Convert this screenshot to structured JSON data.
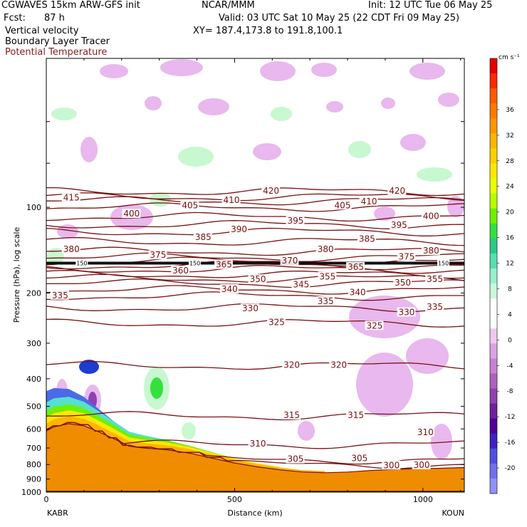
{
  "header": {
    "model": "CGWAVES 15km ARW-GFS init",
    "org": "NCAR/MMM",
    "init": "Init: 12 UTC Tue 06 May 25",
    "fcst_label": "Fcst:",
    "fcst_value": "87 h",
    "valid": "Valid: 03 UTC Sat 10 May 25 (22 CDT Fri 09 May 25)",
    "field1": "Vertical velocity",
    "field2": "Boundary Layer Tracer",
    "field3": "Potential Temperature",
    "xy": "XY= 187.4,173.8 to 191.8,100.1"
  },
  "colors": {
    "theta": "#7a1010",
    "tracer": "#f08c00",
    "field3_text": "#8b1a1a"
  },
  "chart_data": {
    "type": "cross-section",
    "ylabel": "Pressure (hPa), log scale",
    "xlabel": "Distance (km)",
    "yscale": "log",
    "ylim": [
      1000,
      30
    ],
    "xlim": [
      0,
      1110
    ],
    "x_ticks": [
      "0",
      "500",
      "1000"
    ],
    "x_tick_values": [
      0,
      500,
      1000
    ],
    "y_ticks": [
      "100",
      "200",
      "300",
      "400",
      "500",
      "600",
      "700",
      "800",
      "900",
      "1000"
    ],
    "y_tick_values": [
      100,
      200,
      300,
      400,
      500,
      600,
      700,
      800,
      900,
      1000
    ],
    "left_endpoint": "KABR",
    "right_endpoint": "KOUN",
    "colorbar": {
      "unit": "cm s⁻¹",
      "labels": [
        "36",
        "32",
        "28",
        "24",
        "20",
        "16",
        "12",
        "8",
        "4",
        "0",
        "-4",
        "-8",
        "-12",
        "-16",
        "-20"
      ],
      "label_values": [
        36,
        32,
        28,
        24,
        20,
        16,
        12,
        8,
        4,
        0,
        -4,
        -8,
        -12,
        -16,
        -20
      ],
      "colors": [
        "#e60000",
        "#ff2a00",
        "#ff5a00",
        "#ff7a00",
        "#ff9600",
        "#ffb400",
        "#ffd000",
        "#ffe800",
        "#eaff00",
        "#b6ff00",
        "#6ef000",
        "#35e03c",
        "#2ec882",
        "#55e0b0",
        "#98f0c8",
        "#c8f8dc",
        "#ffffff",
        "#ffffff",
        "#f0c8f0",
        "#dca0e6",
        "#c880d2",
        "#b060c0",
        "#9040b0",
        "#7020a0",
        "#500098",
        "#4020c0",
        "#5050e0",
        "#7070f0",
        "#9090ff"
      ]
    },
    "theta_contours": [
      {
        "value": 300,
        "p": 800
      },
      {
        "value": 305,
        "p": 770
      },
      {
        "value": 310,
        "p": 680
      },
      {
        "value": 315,
        "p": 540
      },
      {
        "value": 320,
        "p": 360
      },
      {
        "value": 325,
        "p": 255
      },
      {
        "value": 330,
        "p": 225
      },
      {
        "value": 335,
        "p": 205
      },
      {
        "value": 340,
        "p": 195
      },
      {
        "value": 345,
        "p": 185
      },
      {
        "value": 350,
        "p": 178
      },
      {
        "value": 355,
        "p": 172
      },
      {
        "value": 360,
        "p": 165
      },
      {
        "value": 365,
        "p": 160
      },
      {
        "value": 370,
        "p": 155
      },
      {
        "value": 375,
        "p": 150
      },
      {
        "value": 380,
        "p": 143
      },
      {
        "value": 385,
        "p": 132
      },
      {
        "value": 390,
        "p": 122
      },
      {
        "value": 395,
        "p": 115
      },
      {
        "value": 400,
        "p": 108
      },
      {
        "value": 405,
        "p": 100
      },
      {
        "value": 410,
        "p": 95
      },
      {
        "value": 415,
        "p": 92
      },
      {
        "value": 420,
        "p": 88
      }
    ],
    "theta_labels": [
      {
        "text": "415",
        "x": 45,
        "p": 93
      },
      {
        "text": "420",
        "x": 575,
        "p": 88
      },
      {
        "text": "420",
        "x": 910,
        "p": 88
      },
      {
        "text": "410",
        "x": 470,
        "p": 95
      },
      {
        "text": "410",
        "x": 835,
        "p": 96
      },
      {
        "text": "405",
        "x": 360,
        "p": 99
      },
      {
        "text": "405",
        "x": 765,
        "p": 99
      },
      {
        "text": "400",
        "x": 205,
        "p": 106
      },
      {
        "text": "400",
        "x": 1000,
        "p": 108
      },
      {
        "text": "395",
        "x": 640,
        "p": 112
      },
      {
        "text": "395",
        "x": 915,
        "p": 116
      },
      {
        "text": "390",
        "x": 490,
        "p": 120
      },
      {
        "text": "385",
        "x": 395,
        "p": 128
      },
      {
        "text": "385",
        "x": 830,
        "p": 130
      },
      {
        "text": "380",
        "x": 45,
        "p": 141
      },
      {
        "text": "380",
        "x": 720,
        "p": 141
      },
      {
        "text": "380",
        "x": 1000,
        "p": 143
      },
      {
        "text": "375",
        "x": 275,
        "p": 148
      },
      {
        "text": "375",
        "x": 935,
        "p": 150
      },
      {
        "text": "370",
        "x": 625,
        "p": 155
      },
      {
        "text": "365",
        "x": 450,
        "p": 160
      },
      {
        "text": "365",
        "x": 800,
        "p": 163
      },
      {
        "text": "360",
        "x": 335,
        "p": 168
      },
      {
        "text": "355",
        "x": 725,
        "p": 176
      },
      {
        "text": "355",
        "x": 1010,
        "p": 180
      },
      {
        "text": "350",
        "x": 540,
        "p": 180
      },
      {
        "text": "350",
        "x": 925,
        "p": 185
      },
      {
        "text": "345",
        "x": 655,
        "p": 188
      },
      {
        "text": "340",
        "x": 465,
        "p": 195
      },
      {
        "text": "340",
        "x": 805,
        "p": 200
      },
      {
        "text": "335",
        "x": 15,
        "p": 205
      },
      {
        "text": "335",
        "x": 720,
        "p": 215
      },
      {
        "text": "335",
        "x": 1010,
        "p": 225
      },
      {
        "text": "330",
        "x": 520,
        "p": 228
      },
      {
        "text": "330",
        "x": 935,
        "p": 235
      },
      {
        "text": "325",
        "x": 590,
        "p": 255
      },
      {
        "text": "325",
        "x": 850,
        "p": 262
      },
      {
        "text": "320",
        "x": 630,
        "p": 360
      },
      {
        "text": "320",
        "x": 755,
        "p": 360
      },
      {
        "text": "315",
        "x": 630,
        "p": 540
      },
      {
        "text": "315",
        "x": 800,
        "p": 540
      },
      {
        "text": "310",
        "x": 540,
        "p": 680
      },
      {
        "text": "310",
        "x": 985,
        "p": 620
      },
      {
        "text": "305",
        "x": 640,
        "p": 770
      },
      {
        "text": "305",
        "x": 810,
        "p": 765
      },
      {
        "text": "300",
        "x": 895,
        "p": 810
      },
      {
        "text": "300",
        "x": 975,
        "p": 808
      }
    ],
    "tracer_labels": [
      {
        "text": "150",
        "x": 80,
        "p": 157
      },
      {
        "text": "150",
        "x": 380,
        "p": 157
      },
      {
        "text": "150",
        "x": 1040,
        "p": 157
      }
    ],
    "terrain": [
      {
        "x": 0,
        "p": 610
      },
      {
        "x": 20,
        "p": 590
      },
      {
        "x": 60,
        "p": 575
      },
      {
        "x": 100,
        "p": 585
      },
      {
        "x": 140,
        "p": 615
      },
      {
        "x": 180,
        "p": 650
      },
      {
        "x": 220,
        "p": 690
      },
      {
        "x": 260,
        "p": 700
      },
      {
        "x": 320,
        "p": 710
      },
      {
        "x": 380,
        "p": 730
      },
      {
        "x": 440,
        "p": 760
      },
      {
        "x": 500,
        "p": 790
      },
      {
        "x": 560,
        "p": 815
      },
      {
        "x": 620,
        "p": 835
      },
      {
        "x": 680,
        "p": 850
      },
      {
        "x": 740,
        "p": 855
      },
      {
        "x": 800,
        "p": 850
      },
      {
        "x": 860,
        "p": 840
      },
      {
        "x": 920,
        "p": 832
      },
      {
        "x": 980,
        "p": 828
      },
      {
        "x": 1040,
        "p": 825
      },
      {
        "x": 1110,
        "p": 820
      }
    ]
  }
}
